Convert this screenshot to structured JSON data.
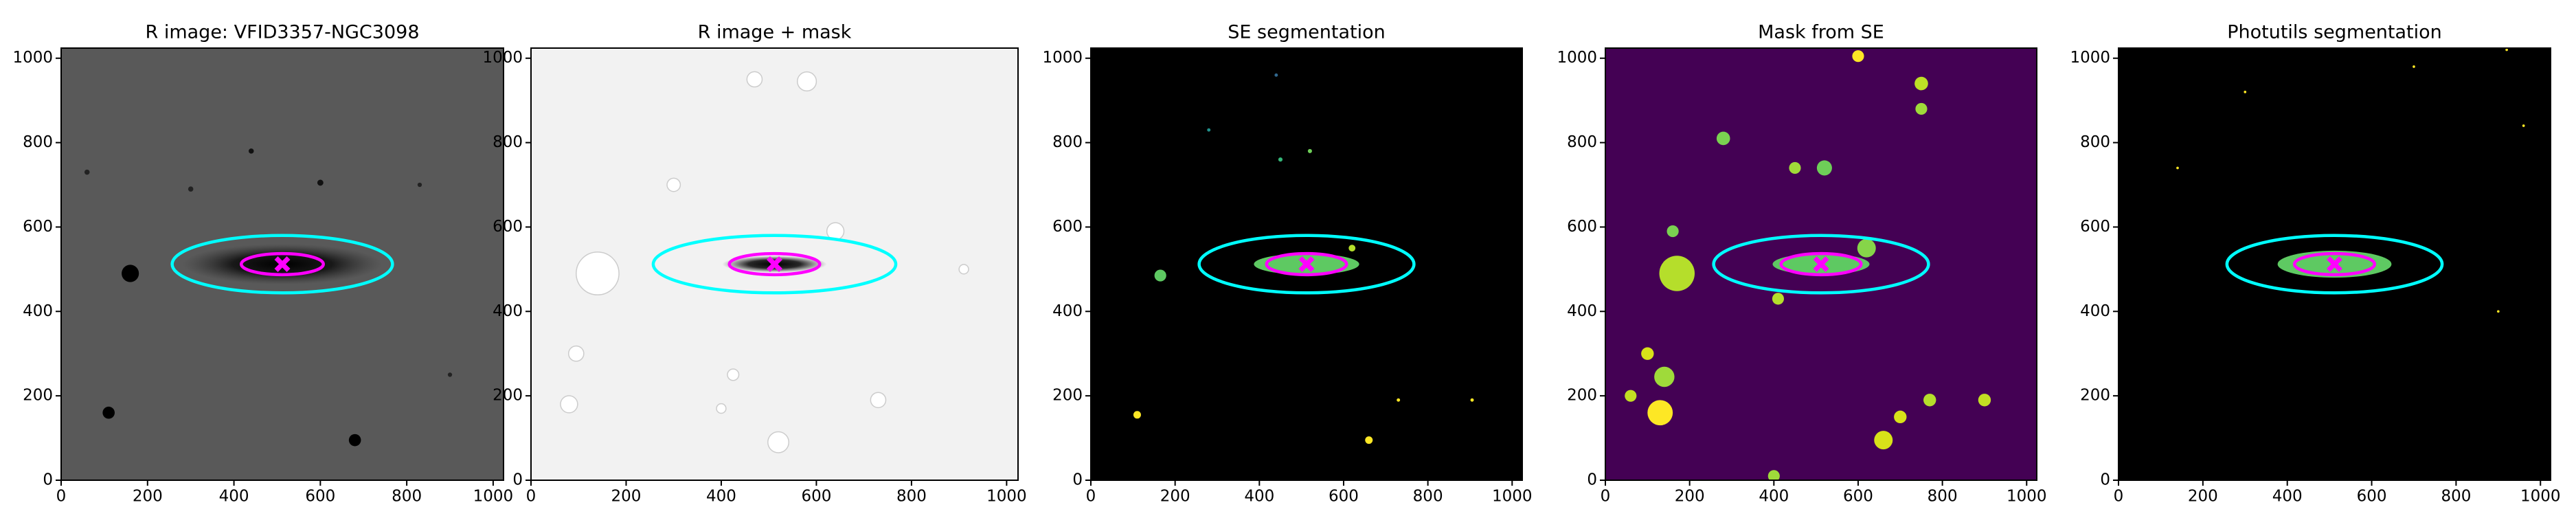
{
  "chart_data": [
    {
      "type": "image",
      "title": "R image: VFID3357-NGC3098",
      "background": "#595959",
      "xlim": [
        0,
        1024
      ],
      "ylim": [
        0,
        1024
      ],
      "xticks": [
        0,
        200,
        400,
        600,
        800,
        1000
      ],
      "yticks": [
        0,
        200,
        400,
        600,
        800,
        1000
      ],
      "ellipses": [
        {
          "x": 512,
          "y": 512,
          "a": 255,
          "b": 68,
          "color": "#00ffff"
        },
        {
          "x": 512,
          "y": 512,
          "a": 95,
          "b": 25,
          "color": "#ff00ff"
        }
      ],
      "marker": {
        "x": 512,
        "y": 512,
        "color": "#ff00ff"
      }
    },
    {
      "type": "image",
      "title": "R image + mask",
      "background": "#f2f2f2",
      "xlim": [
        0,
        1024
      ],
      "ylim": [
        0,
        1024
      ],
      "xticks": [
        0,
        200,
        400,
        600,
        800,
        1000
      ],
      "yticks": [
        0,
        200,
        400,
        600,
        800,
        1000
      ],
      "ellipses": [
        {
          "x": 512,
          "y": 512,
          "a": 255,
          "b": 68,
          "color": "#00ffff"
        },
        {
          "x": 512,
          "y": 512,
          "a": 95,
          "b": 25,
          "color": "#ff00ff"
        }
      ],
      "marker": {
        "x": 512,
        "y": 512,
        "color": "#ff00ff"
      }
    },
    {
      "type": "image",
      "title": "SE segmentation",
      "background": "#000000",
      "xlim": [
        0,
        1024
      ],
      "ylim": [
        0,
        1024
      ],
      "xticks": [
        0,
        200,
        400,
        600,
        800,
        1000
      ],
      "yticks": [
        0,
        200,
        400,
        600,
        800,
        1000
      ],
      "ellipses": [
        {
          "x": 512,
          "y": 512,
          "a": 255,
          "b": 68,
          "color": "#00ffff"
        },
        {
          "x": 512,
          "y": 512,
          "a": 95,
          "b": 25,
          "color": "#ff00ff"
        }
      ],
      "marker": {
        "x": 512,
        "y": 512,
        "color": "#ff00ff"
      }
    },
    {
      "type": "image",
      "title": "Mask from SE",
      "background": "#440154",
      "xlim": [
        0,
        1024
      ],
      "ylim": [
        0,
        1024
      ],
      "xticks": [
        0,
        200,
        400,
        600,
        800,
        1000
      ],
      "yticks": [
        0,
        200,
        400,
        600,
        800,
        1000
      ],
      "ellipses": [
        {
          "x": 512,
          "y": 512,
          "a": 255,
          "b": 68,
          "color": "#00ffff"
        },
        {
          "x": 512,
          "y": 512,
          "a": 95,
          "b": 25,
          "color": "#ff00ff"
        }
      ],
      "marker": {
        "x": 512,
        "y": 512,
        "color": "#ff00ff"
      }
    },
    {
      "type": "image",
      "title": "Photutils segmentation",
      "background": "#000000",
      "xlim": [
        0,
        1024
      ],
      "ylim": [
        0,
        1024
      ],
      "xticks": [
        0,
        200,
        400,
        600,
        800,
        1000
      ],
      "yticks": [
        0,
        200,
        400,
        600,
        800,
        1000
      ],
      "ellipses": [
        {
          "x": 512,
          "y": 512,
          "a": 255,
          "b": 68,
          "color": "#00ffff"
        },
        {
          "x": 512,
          "y": 512,
          "a": 95,
          "b": 25,
          "color": "#ff00ff"
        }
      ],
      "marker": {
        "x": 512,
        "y": 512,
        "color": "#ff00ff"
      }
    }
  ]
}
